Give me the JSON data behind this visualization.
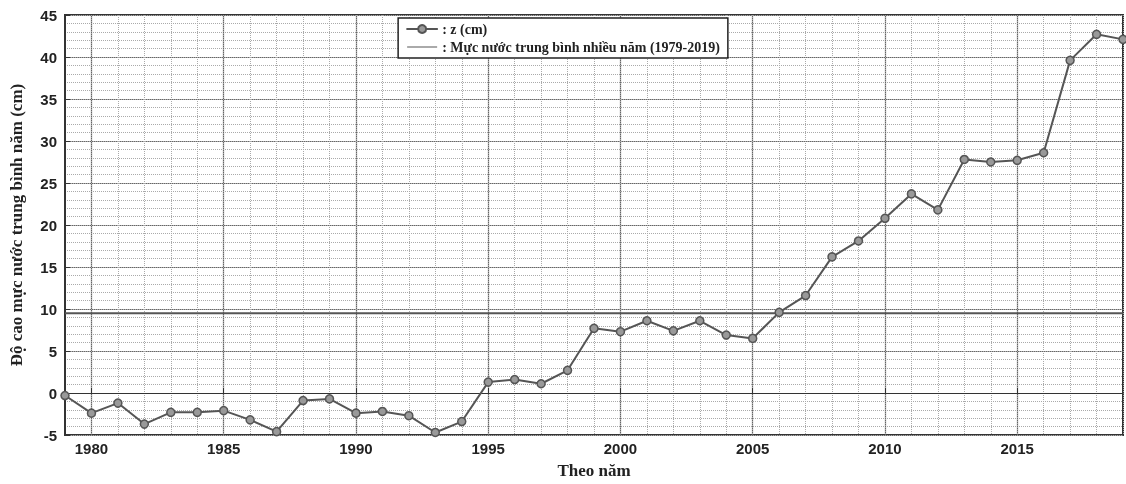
{
  "chart_data": {
    "type": "line",
    "xlabel": "Theo năm",
    "ylabel": "Độ cao mực nước trung bình năm (cm)",
    "x": [
      1979,
      1980,
      1981,
      1982,
      1983,
      1984,
      1985,
      1986,
      1987,
      1988,
      1989,
      1990,
      1991,
      1992,
      1993,
      1994,
      1995,
      1996,
      1997,
      1998,
      1999,
      2000,
      2001,
      2002,
      2003,
      2004,
      2005,
      2006,
      2007,
      2008,
      2009,
      2010,
      2011,
      2012,
      2013,
      2014,
      2015,
      2016,
      2017,
      2018,
      2019
    ],
    "series": [
      {
        "name": ": z (cm)",
        "color": "#555555",
        "values": [
          -0.3,
          -2.4,
          -1.2,
          -3.7,
          -2.3,
          -2.3,
          -2.1,
          -3.2,
          -4.6,
          -0.9,
          -0.7,
          -2.4,
          -2.2,
          -2.7,
          -4.7,
          -3.4,
          1.3,
          1.6,
          1.1,
          2.7,
          7.7,
          7.3,
          8.6,
          7.4,
          8.6,
          6.9,
          6.5,
          9.6,
          11.6,
          16.2,
          18.1,
          20.8,
          23.7,
          21.8,
          27.8,
          27.5,
          27.7,
          28.6,
          39.6,
          42.7,
          42.1
        ]
      }
    ],
    "ref_lines": [
      {
        "axis": "y",
        "value": 9.5,
        "label": ": Mực nước trung bình nhiều năm (1979-2019)",
        "color": "#555555"
      }
    ],
    "xlim": [
      1979,
      2019
    ],
    "xticks": [
      1980,
      1985,
      1990,
      1995,
      2000,
      2005,
      2010,
      2015
    ],
    "ylim": [
      -5,
      45
    ],
    "yticks": [
      -5,
      0,
      5,
      10,
      15,
      20,
      25,
      30,
      35,
      40,
      45
    ],
    "grid": true,
    "legend": "top",
    "marker": "circle",
    "line_style": "solid"
  }
}
